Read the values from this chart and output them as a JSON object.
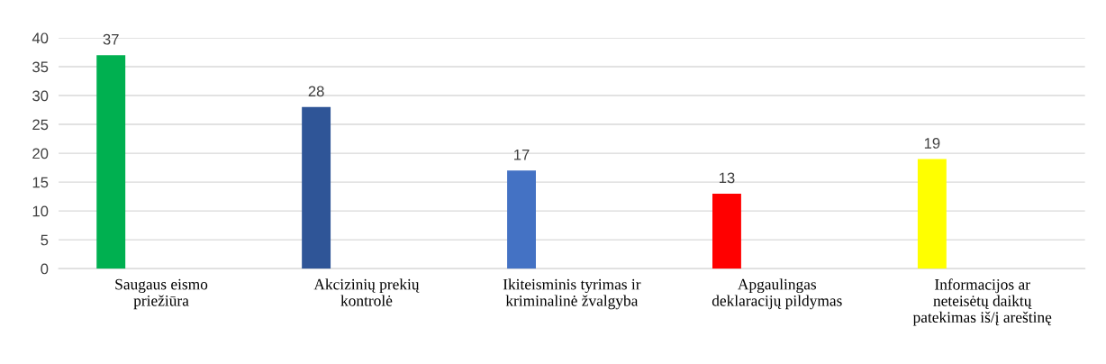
{
  "chart_data": {
    "type": "bar",
    "categories": [
      "Saugaus eismo\npriežiūra",
      "Akcizinių prekių\nkontrolė",
      "Ikiteisminis tyrimas ir\nkriminalinė žvalgyba",
      "Apgaulingas\ndeklaracijų pildymas",
      "Informacijos ar\nneteisėtų daiktų\npatekimas iš/į areštinę"
    ],
    "values": [
      37,
      28,
      17,
      13,
      19
    ],
    "colors": [
      "#00b050",
      "#2f5597",
      "#4472c4",
      "#ff0000",
      "#ffff00"
    ],
    "ylim": [
      0,
      40
    ],
    "yticks": [
      0,
      5,
      10,
      15,
      20,
      25,
      30,
      35,
      40
    ],
    "grid": "y",
    "data_labels": true
  }
}
